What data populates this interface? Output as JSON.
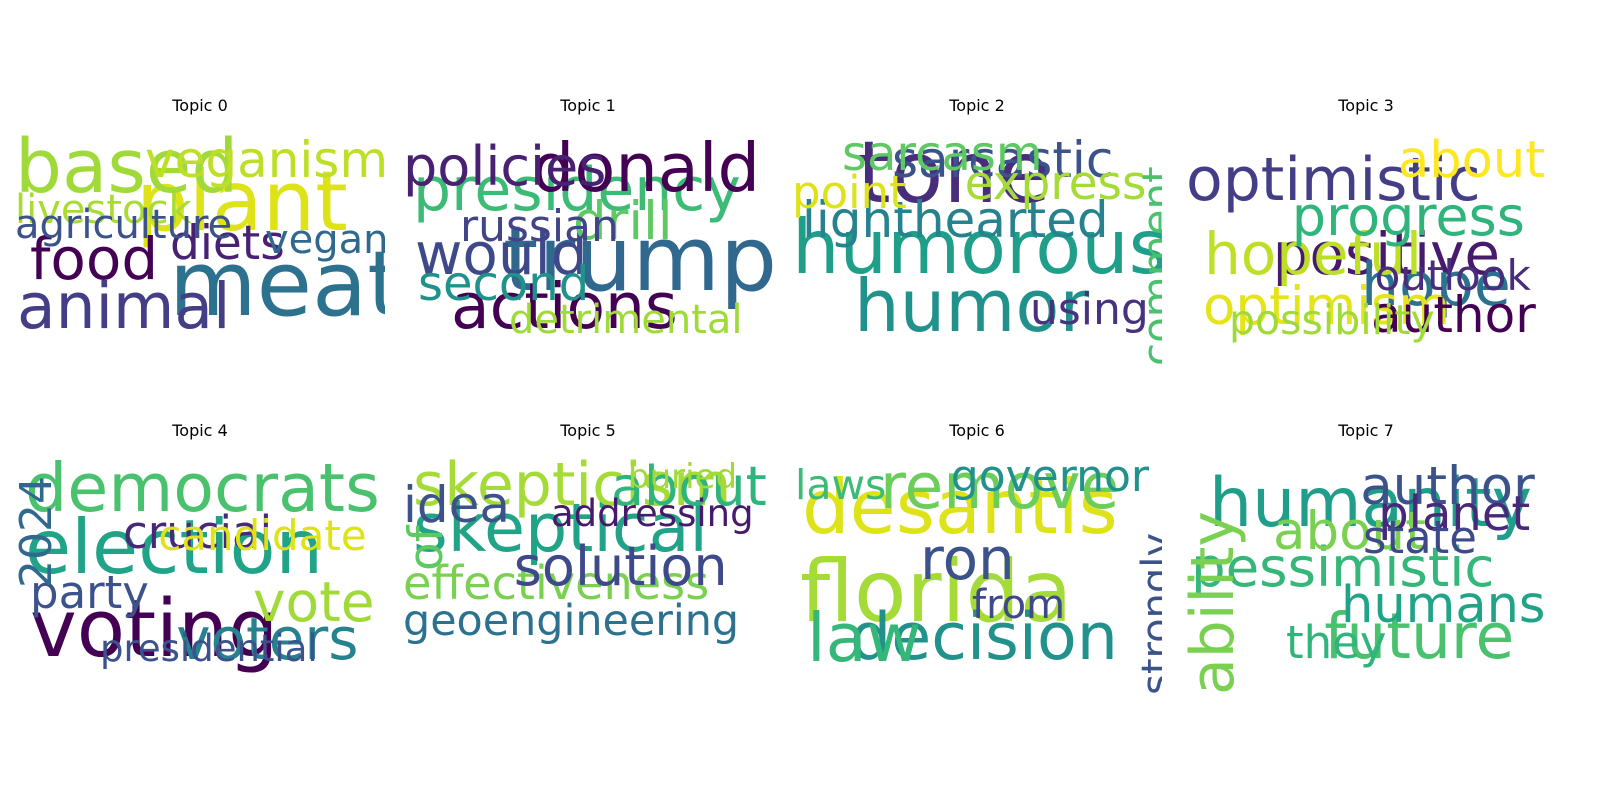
{
  "chart_data": {
    "type": "wordcloud",
    "panels": [
      {
        "title": "Topic 0",
        "words": [
          {
            "text": "meat",
            "weight": 1.0,
            "color": "#2c728e"
          },
          {
            "text": "plant",
            "weight": 0.9,
            "color": "#dde318"
          },
          {
            "text": "based",
            "weight": 0.78,
            "color": "#a0da39"
          },
          {
            "text": "animal",
            "weight": 0.62,
            "color": "#433e85"
          },
          {
            "text": "food",
            "weight": 0.55,
            "color": "#440154"
          },
          {
            "text": "veganism",
            "weight": 0.45,
            "color": "#bddf26"
          },
          {
            "text": "diets",
            "weight": 0.4,
            "color": "#482173"
          },
          {
            "text": "vegan",
            "weight": 0.3,
            "color": "#31688e"
          },
          {
            "text": "livestock",
            "weight": 0.3,
            "color": "#a8db34"
          },
          {
            "text": "agriculture",
            "weight": 0.3,
            "color": "#3b528b"
          }
        ]
      },
      {
        "title": "Topic 1",
        "words": [
          {
            "text": "trump",
            "weight": 1.0,
            "color": "#31688e"
          },
          {
            "text": "presidency",
            "weight": 0.8,
            "color": "#3bbb75"
          },
          {
            "text": "donald",
            "weight": 0.68,
            "color": "#440154"
          },
          {
            "text": "actions",
            "weight": 0.62,
            "color": "#440154"
          },
          {
            "text": "would",
            "weight": 0.55,
            "color": "#3e4989"
          },
          {
            "text": "policies",
            "weight": 0.5,
            "color": "#482173"
          },
          {
            "text": "drill",
            "weight": 0.48,
            "color": "#5ec962"
          },
          {
            "text": "second",
            "weight": 0.42,
            "color": "#21918c"
          },
          {
            "text": "russian",
            "weight": 0.36,
            "color": "#414487"
          },
          {
            "text": "detrimental",
            "weight": 0.3,
            "color": "#a0da39"
          }
        ]
      },
      {
        "title": "Topic 2",
        "words": [
          {
            "text": "humorous",
            "weight": 1.0,
            "color": "#1f9e89"
          },
          {
            "text": "tone",
            "weight": 0.95,
            "color": "#472d7b"
          },
          {
            "text": "humor",
            "weight": 0.75,
            "color": "#21918c"
          },
          {
            "text": "lighthearted",
            "weight": 0.5,
            "color": "#26828e"
          },
          {
            "text": "sarcastic",
            "weight": 0.45,
            "color": "#3b528b"
          },
          {
            "text": "sarcasm",
            "weight": 0.42,
            "color": "#5ec962"
          },
          {
            "text": "express",
            "weight": 0.4,
            "color": "#a5db36"
          },
          {
            "text": "point",
            "weight": 0.38,
            "color": "#dde318"
          },
          {
            "text": "using",
            "weight": 0.36,
            "color": "#46327e"
          },
          {
            "text": "comment",
            "weight": 0.34,
            "color": "#4ac16d",
            "vertical": true
          }
        ]
      },
      {
        "title": "Topic 3",
        "words": [
          {
            "text": "optimistic",
            "weight": 1.0,
            "color": "#433e85"
          },
          {
            "text": "positive",
            "weight": 0.55,
            "color": "#481a6c"
          },
          {
            "text": "hope",
            "weight": 0.58,
            "color": "#2c728e"
          },
          {
            "text": "hopeful",
            "weight": 0.55,
            "color": "#bddf26"
          },
          {
            "text": "progress",
            "weight": 0.5,
            "color": "#2fb47c"
          },
          {
            "text": "optimism",
            "weight": 0.48,
            "color": "#e5e419"
          },
          {
            "text": "about",
            "weight": 0.46,
            "color": "#fde725"
          },
          {
            "text": "author",
            "weight": 0.44,
            "color": "#440154"
          },
          {
            "text": "outlook",
            "weight": 0.34,
            "color": "#472d7b"
          },
          {
            "text": "possibility",
            "weight": 0.32,
            "color": "#a0da39"
          }
        ]
      },
      {
        "title": "Topic 4",
        "words": [
          {
            "text": "election",
            "weight": 1.0,
            "color": "#20a386"
          },
          {
            "text": "democrats",
            "weight": 0.9,
            "color": "#4ac16d"
          },
          {
            "text": "voting",
            "weight": 0.85,
            "color": "#440154"
          },
          {
            "text": "voters",
            "weight": 0.55,
            "color": "#26828e"
          },
          {
            "text": "vote",
            "weight": 0.52,
            "color": "#a0da39"
          },
          {
            "text": "party",
            "weight": 0.38,
            "color": "#3b528b"
          },
          {
            "text": "crucial",
            "weight": 0.38,
            "color": "#482878"
          },
          {
            "text": "candidate",
            "weight": 0.34,
            "color": "#dde318"
          },
          {
            "text": "2024",
            "weight": 0.36,
            "color": "#31688e",
            "vertical": true
          },
          {
            "text": "presidential",
            "weight": 0.26,
            "color": "#3b528b"
          }
        ]
      },
      {
        "title": "Topic 5",
        "words": [
          {
            "text": "skeptical",
            "weight": 1.0,
            "color": "#20a386"
          },
          {
            "text": "effectiveness",
            "weight": 0.85,
            "color": "#7ad151"
          },
          {
            "text": "geoengineering",
            "weight": 0.85,
            "color": "#2c728e"
          },
          {
            "text": "skepticism",
            "weight": 0.6,
            "color": "#a5db36"
          },
          {
            "text": "solution",
            "weight": 0.5,
            "color": "#3e4989"
          },
          {
            "text": "about",
            "weight": 0.5,
            "color": "#2fb47c"
          },
          {
            "text": "idea",
            "weight": 0.45,
            "color": "#3b528b"
          },
          {
            "text": "of",
            "weight": 0.4,
            "color": "#5ec962",
            "vertical": true
          },
          {
            "text": "addressing",
            "weight": 0.26,
            "color": "#481a6c"
          },
          {
            "text": "buried",
            "weight": 0.22,
            "color": "#a0da39"
          }
        ]
      },
      {
        "title": "Topic 6",
        "words": [
          {
            "text": "florida",
            "weight": 1.0,
            "color": "#a5db36"
          },
          {
            "text": "desantis",
            "weight": 0.95,
            "color": "#dde318"
          },
          {
            "text": "decision",
            "weight": 0.65,
            "color": "#21918c"
          },
          {
            "text": "law",
            "weight": 0.68,
            "color": "#35b779"
          },
          {
            "text": "remove",
            "weight": 0.62,
            "color": "#6ccd5a"
          },
          {
            "text": "ron",
            "weight": 0.55,
            "color": "#3b528b"
          },
          {
            "text": "governor",
            "weight": 0.36,
            "color": "#21918c"
          },
          {
            "text": "laws",
            "weight": 0.32,
            "color": "#3bbb75"
          },
          {
            "text": "from",
            "weight": 0.3,
            "color": "#3e4989"
          },
          {
            "text": "strongly",
            "weight": 0.3,
            "color": "#3b528b",
            "vertical": true
          }
        ]
      },
      {
        "title": "Topic 7",
        "words": [
          {
            "text": "pessimistic",
            "weight": 1.0,
            "color": "#35b779"
          },
          {
            "text": "humanity",
            "weight": 0.7,
            "color": "#1f9e89"
          },
          {
            "text": "future",
            "weight": 0.62,
            "color": "#4ac16d"
          },
          {
            "text": "ability",
            "weight": 0.58,
            "color": "#7ad151",
            "vertical": true
          },
          {
            "text": "author",
            "weight": 0.48,
            "color": "#3b528b"
          },
          {
            "text": "about",
            "weight": 0.48,
            "color": "#7ad151"
          },
          {
            "text": "humans",
            "weight": 0.46,
            "color": "#20a386"
          },
          {
            "text": "planet",
            "weight": 0.42,
            "color": "#482878"
          },
          {
            "text": "state",
            "weight": 0.38,
            "color": "#3e4989"
          },
          {
            "text": "they",
            "weight": 0.38,
            "color": "#2fb47c"
          }
        ]
      }
    ]
  }
}
